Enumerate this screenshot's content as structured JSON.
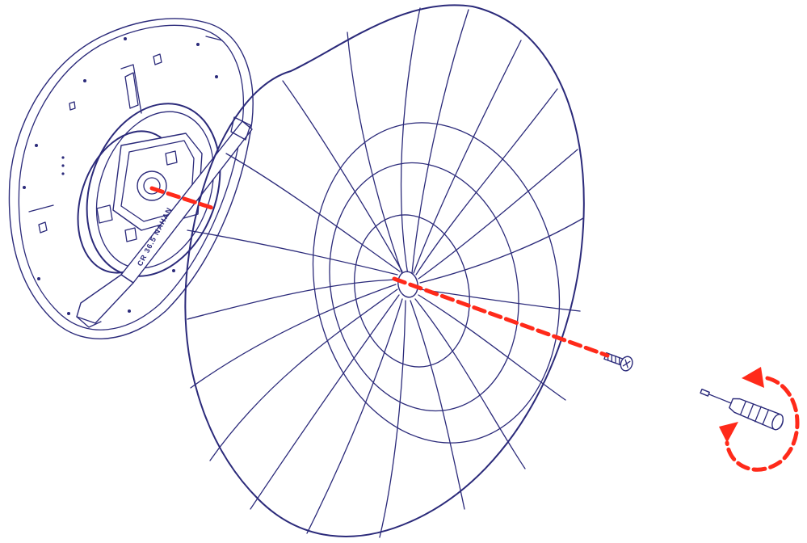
{
  "colors": {
    "line": "#2b2a7a",
    "accent": "#ff2a1a",
    "background": "#ffffff"
  },
  "bracket": {
    "embossed_text": "CR 36.5 NAHAN"
  },
  "steps": {
    "screw_direction": "clockwise",
    "tool": "screwdriver-icon",
    "fastener": "screw-icon"
  }
}
